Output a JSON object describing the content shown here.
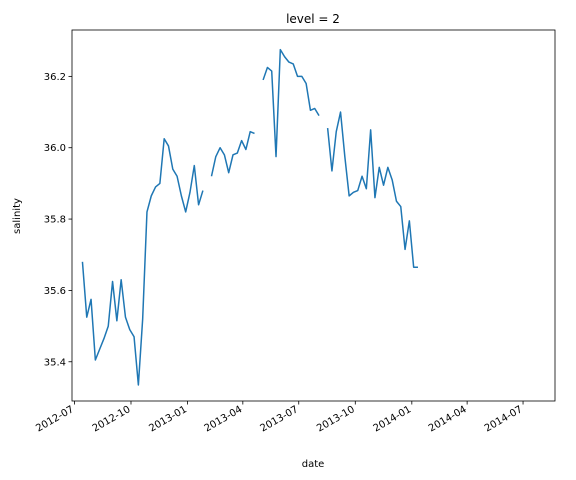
{
  "chart_data": {
    "type": "line",
    "title": "level = 2",
    "xlabel": "date",
    "ylabel": "salinity",
    "x_axis": "date",
    "xlim": [
      "2012-06-27",
      "2014-08-22"
    ],
    "ylim": [
      35.29,
      36.33
    ],
    "x_ticks": [
      "2012-07-01",
      "2012-10-01",
      "2013-01-01",
      "2013-04-01",
      "2013-07-01",
      "2013-10-01",
      "2014-01-01",
      "2014-04-01",
      "2014-07-01"
    ],
    "x_tick_labels": [
      "2012-07",
      "2012-10",
      "2013-01",
      "2013-04",
      "2013-07",
      "2013-10",
      "2014-01",
      "2014-04",
      "2014-07"
    ],
    "y_ticks": [
      35.4,
      35.6,
      35.8,
      36.0,
      36.2
    ],
    "y_tick_labels": [
      "35.4",
      "35.6",
      "35.8",
      "36.0",
      "36.2"
    ],
    "grid": false,
    "legend": "none",
    "color": "#1f77b4",
    "series": [
      {
        "x": [
          "2012-07-14",
          "2012-07-21",
          "2012-07-28",
          "2012-08-04",
          "2012-08-11",
          "2012-08-18",
          "2012-08-25",
          "2012-09-01",
          "2012-09-08",
          "2012-09-15",
          "2012-09-22",
          "2012-09-29",
          "2012-10-06",
          "2012-10-13",
          "2012-10-20",
          "2012-10-27",
          "2012-11-03",
          "2012-11-10",
          "2012-11-17",
          "2012-11-24",
          "2012-12-01",
          "2012-12-08",
          "2012-12-15",
          "2012-12-22",
          "2012-12-29",
          "2013-01-05",
          "2013-01-12",
          "2013-01-19",
          "2013-01-26",
          "2013-02-02",
          "2013-02-09",
          "2013-02-16",
          "2013-02-23",
          "2013-03-02",
          "2013-03-09",
          "2013-03-16",
          "2013-03-23",
          "2013-03-30",
          "2013-04-06",
          "2013-04-13",
          "2013-04-20",
          "2013-04-27",
          "2013-05-04",
          "2013-05-11",
          "2013-05-18",
          "2013-05-25",
          "2013-06-01",
          "2013-06-08",
          "2013-06-15",
          "2013-06-22",
          "2013-06-29",
          "2013-07-06",
          "2013-07-13",
          "2013-07-20",
          "2013-07-27",
          "2013-08-03",
          "2013-08-10",
          "2013-08-17",
          "2013-08-24",
          "2013-08-31",
          "2013-09-07",
          "2013-09-14",
          "2013-09-21",
          "2013-09-28",
          "2013-10-05",
          "2013-10-12",
          "2013-10-19",
          "2013-10-26",
          "2013-11-02",
          "2013-11-09",
          "2013-11-16",
          "2013-11-23",
          "2013-11-30",
          "2013-12-07",
          "2013-12-14",
          "2013-12-21",
          "2013-12-28",
          "2014-01-04",
          "2014-01-11",
          "2014-01-18",
          "2014-01-25",
          "2014-02-01",
          "2014-02-08",
          "2014-02-15",
          "2014-02-22",
          "2014-03-01",
          "2014-03-08",
          "2014-03-15",
          "2014-03-22",
          "2014-03-29",
          "2014-04-05",
          "2014-04-12",
          "2014-04-19",
          "2014-04-26",
          "2014-05-03",
          "2014-05-10",
          "2014-05-17",
          "2014-05-24",
          "2014-05-31",
          "2014-06-07",
          "2014-06-14",
          "2014-06-21",
          "2014-06-28",
          "2014-07-05",
          "2014-07-12",
          "2014-07-19",
          "2014-07-26",
          "2014-08-02"
        ],
        "y": [
          35.68,
          35.525,
          35.575,
          35.405,
          35.435,
          35.465,
          35.5,
          35.625,
          35.515,
          35.63,
          35.525,
          35.49,
          35.47,
          35.335,
          35.52,
          35.82,
          35.865,
          35.89,
          35.9,
          36.025,
          36.005,
          35.94,
          35.92,
          35.865,
          35.82,
          35.875,
          35.95,
          35.84,
          35.88,
          null,
          35.92,
          35.975,
          36.0,
          35.98,
          35.93,
          35.98,
          35.985,
          36.02,
          35.995,
          36.045,
          36.04,
          null,
          36.19,
          36.225,
          36.215,
          35.975,
          36.275,
          36.255,
          36.24,
          36.235,
          36.2,
          36.2,
          36.18,
          36.105,
          36.11,
          36.09,
          null,
          36.055,
          35.935,
          36.045,
          36.1,
          35.975,
          35.865,
          35.875,
          35.88,
          35.92,
          35.885,
          36.05,
          35.86,
          35.945,
          35.895,
          35.945,
          35.91,
          35.85,
          35.835,
          35.715,
          35.795,
          35.665,
          35.665,
          null,
          null,
          null,
          null,
          null,
          null,
          null,
          null,
          null,
          null,
          null,
          null,
          null,
          null,
          null,
          null,
          null,
          null,
          null,
          null,
          null,
          null,
          null,
          null,
          null,
          null,
          null,
          null,
          null
        ]
      }
    ]
  }
}
